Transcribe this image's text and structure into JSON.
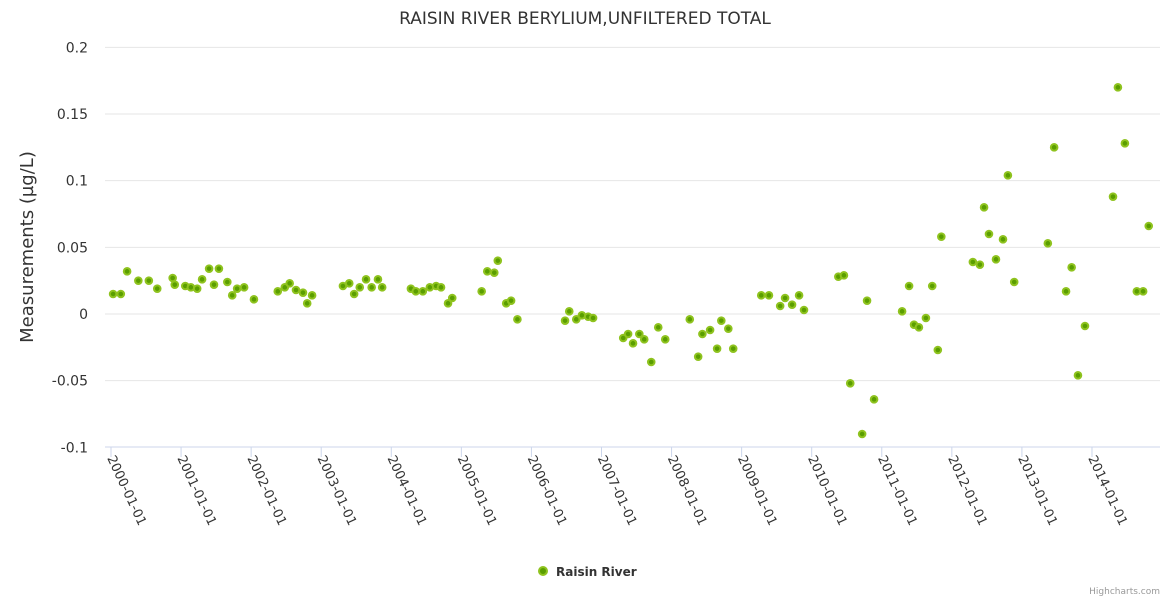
{
  "chart_data": {
    "type": "scatter",
    "title": "RAISIN RIVER BERYLIUM,UNFILTERED TOTAL",
    "xlabel": "",
    "ylabel": "Measurements (µg/L)",
    "ylim": [
      -0.1,
      0.2
    ],
    "xlim": [
      2000.0,
      2015.0
    ],
    "yticks": [
      -0.1,
      -0.05,
      0,
      0.05,
      0.1,
      0.15,
      0.2
    ],
    "ytick_labels": [
      "-0.1",
      "-0.05",
      "0",
      "0.05",
      "0.1",
      "0.15",
      "0.2"
    ],
    "xticks": [
      2000,
      2001,
      2002,
      2003,
      2004,
      2005,
      2006,
      2007,
      2008,
      2009,
      2010,
      2011,
      2012,
      2013,
      2014
    ],
    "xtick_labels": [
      "2000-01-01",
      "2001-01-01",
      "2002-01-01",
      "2003-01-01",
      "2004-01-01",
      "2005-01-01",
      "2006-01-01",
      "2007-01-01",
      "2008-01-01",
      "2009-01-01",
      "2010-01-01",
      "2011-01-01",
      "2012-01-01",
      "2013-01-01",
      "2014-01-01"
    ],
    "grid": true,
    "legend_position": "bottom-center",
    "series": [
      {
        "name": "Raisin River",
        "color": "#5a9e00",
        "stroke": "#8fc31f",
        "points": [
          [
            2000.03,
            0.015
          ],
          [
            2000.14,
            0.015
          ],
          [
            2000.23,
            0.032
          ],
          [
            2000.39,
            0.025
          ],
          [
            2000.54,
            0.025
          ],
          [
            2000.66,
            0.019
          ],
          [
            2000.88,
            0.027
          ],
          [
            2000.91,
            0.022
          ],
          [
            2001.06,
            0.021
          ],
          [
            2001.14,
            0.02
          ],
          [
            2001.23,
            0.019
          ],
          [
            2001.3,
            0.026
          ],
          [
            2001.4,
            0.034
          ],
          [
            2001.47,
            0.022
          ],
          [
            2001.54,
            0.034
          ],
          [
            2001.66,
            0.024
          ],
          [
            2001.73,
            0.014
          ],
          [
            2001.8,
            0.019
          ],
          [
            2001.9,
            0.02
          ],
          [
            2002.04,
            0.011
          ],
          [
            2002.38,
            0.017
          ],
          [
            2002.48,
            0.02
          ],
          [
            2002.55,
            0.023
          ],
          [
            2002.64,
            0.018
          ],
          [
            2002.74,
            0.016
          ],
          [
            2002.8,
            0.008
          ],
          [
            2002.87,
            0.014
          ],
          [
            2003.31,
            0.021
          ],
          [
            2003.4,
            0.023
          ],
          [
            2003.47,
            0.015
          ],
          [
            2003.55,
            0.02
          ],
          [
            2003.64,
            0.026
          ],
          [
            2003.72,
            0.02
          ],
          [
            2003.81,
            0.026
          ],
          [
            2003.87,
            0.02
          ],
          [
            2004.28,
            0.019
          ],
          [
            2004.35,
            0.017
          ],
          [
            2004.45,
            0.017
          ],
          [
            2004.55,
            0.02
          ],
          [
            2004.64,
            0.021
          ],
          [
            2004.71,
            0.02
          ],
          [
            2004.81,
            0.008
          ],
          [
            2004.87,
            0.012
          ],
          [
            2005.29,
            0.017
          ],
          [
            2005.37,
            0.032
          ],
          [
            2005.47,
            0.031
          ],
          [
            2005.52,
            0.04
          ],
          [
            2005.64,
            0.008
          ],
          [
            2005.71,
            0.01
          ],
          [
            2005.8,
            -0.004
          ],
          [
            2006.48,
            -0.005
          ],
          [
            2006.54,
            0.002
          ],
          [
            2006.64,
            -0.004
          ],
          [
            2006.72,
            -0.001
          ],
          [
            2006.81,
            -0.002
          ],
          [
            2006.88,
            -0.003
          ],
          [
            2007.31,
            -0.018
          ],
          [
            2007.38,
            -0.015
          ],
          [
            2007.45,
            -0.022
          ],
          [
            2007.54,
            -0.015
          ],
          [
            2007.61,
            -0.019
          ],
          [
            2007.71,
            -0.036
          ],
          [
            2007.81,
            -0.01
          ],
          [
            2007.91,
            -0.019
          ],
          [
            2008.26,
            -0.004
          ],
          [
            2008.38,
            -0.032
          ],
          [
            2008.44,
            -0.015
          ],
          [
            2008.55,
            -0.012
          ],
          [
            2008.65,
            -0.026
          ],
          [
            2008.71,
            -0.005
          ],
          [
            2008.81,
            -0.011
          ],
          [
            2008.88,
            -0.026
          ],
          [
            2009.28,
            0.014
          ],
          [
            2009.39,
            0.014
          ],
          [
            2009.55,
            0.006
          ],
          [
            2009.62,
            0.012
          ],
          [
            2009.72,
            0.007
          ],
          [
            2009.82,
            0.014
          ],
          [
            2009.89,
            0.003
          ],
          [
            2010.38,
            0.028
          ],
          [
            2010.46,
            0.029
          ],
          [
            2010.55,
            -0.052
          ],
          [
            2010.72,
            -0.09
          ],
          [
            2010.79,
            0.01
          ],
          [
            2010.89,
            -0.064
          ],
          [
            2011.29,
            0.002
          ],
          [
            2011.39,
            0.021
          ],
          [
            2011.46,
            -0.008
          ],
          [
            2011.53,
            -0.01
          ],
          [
            2011.63,
            -0.003
          ],
          [
            2011.72,
            0.021
          ],
          [
            2011.8,
            -0.027
          ],
          [
            2011.85,
            0.058
          ],
          [
            2012.3,
            0.039
          ],
          [
            2012.4,
            0.037
          ],
          [
            2012.46,
            0.08
          ],
          [
            2012.53,
            0.06
          ],
          [
            2012.63,
            0.041
          ],
          [
            2012.73,
            0.056
          ],
          [
            2012.8,
            0.104
          ],
          [
            2012.89,
            0.024
          ],
          [
            2013.37,
            0.053
          ],
          [
            2013.46,
            0.125
          ],
          [
            2013.63,
            0.017
          ],
          [
            2013.71,
            0.035
          ],
          [
            2013.8,
            -0.046
          ],
          [
            2013.9,
            -0.009
          ],
          [
            2014.3,
            0.088
          ],
          [
            2014.37,
            0.17
          ],
          [
            2014.47,
            0.128
          ],
          [
            2014.64,
            0.017
          ],
          [
            2014.73,
            0.017
          ],
          [
            2014.81,
            0.066
          ]
        ]
      }
    ]
  },
  "credits": "Highcharts.com"
}
